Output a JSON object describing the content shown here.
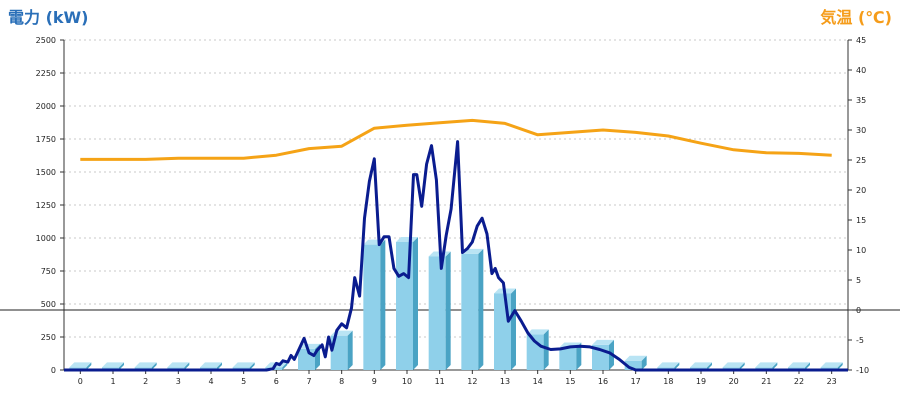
{
  "chart_data": {
    "type": "bar",
    "left_axis_title": "電力 (kW)",
    "right_axis_title": "気温 (℃)",
    "x_categories": [
      "0",
      "1",
      "2",
      "3",
      "4",
      "5",
      "6",
      "7",
      "8",
      "9",
      "10",
      "11",
      "12",
      "13",
      "14",
      "15",
      "16",
      "17",
      "18",
      "19",
      "20",
      "21",
      "22",
      "23"
    ],
    "y_left_ticks": [
      "0",
      "250",
      "500",
      "750",
      "1000",
      "1250",
      "1500",
      "1750",
      "2000",
      "2250",
      "2500"
    ],
    "y_right_ticks": [
      "-10",
      "-5",
      "0",
      "5",
      "10",
      "15",
      "20",
      "25",
      "30",
      "35",
      "40",
      "45"
    ],
    "y_left_range": [
      0,
      2500
    ],
    "y_right_range": [
      -10,
      45
    ],
    "grid": true,
    "colors": {
      "bar": "#8fd0ea",
      "bar_side": "#4aa3c4",
      "bar_top": "#b9e4f4",
      "power_line": "#0a1c8f",
      "temperature_line": "#f5a316",
      "title_left": "#2a6fb8",
      "title_right": "#f59c1a"
    },
    "series": [
      {
        "type": "bar",
        "axis": "left",
        "values": [
          20,
          20,
          20,
          20,
          20,
          20,
          20,
          160,
          260,
          950,
          970,
          860,
          880,
          580,
          270,
          170,
          190,
          70,
          20,
          20,
          20,
          20,
          20,
          20
        ]
      },
      {
        "type": "line",
        "axis": "left",
        "x": [
          5.7,
          5.9,
          6.0,
          6.1,
          6.2,
          6.35,
          6.45,
          6.55,
          6.7,
          6.85,
          7.0,
          7.15,
          7.25,
          7.4,
          7.5,
          7.6,
          7.7,
          7.85,
          8.0,
          8.15,
          8.3,
          8.4,
          8.55,
          8.7,
          8.85,
          9.0,
          9.15,
          9.3,
          9.45,
          9.6,
          9.75,
          9.9,
          10.05,
          10.2,
          10.3,
          10.45,
          10.6,
          10.75,
          10.9,
          11.05,
          11.2,
          11.35,
          11.55,
          11.7,
          11.85,
          12.0,
          12.15,
          12.3,
          12.45,
          12.6,
          12.7,
          12.8,
          12.95,
          13.1,
          13.3,
          13.5,
          13.7,
          13.9,
          14.1,
          14.4,
          14.7,
          15.0,
          15.3,
          15.6,
          15.9,
          16.2,
          16.5,
          16.8,
          17.0,
          17.2
        ],
        "y": [
          0,
          10,
          50,
          40,
          70,
          60,
          110,
          80,
          160,
          240,
          130,
          110,
          150,
          190,
          100,
          250,
          150,
          300,
          350,
          320,
          470,
          700,
          560,
          1150,
          1430,
          1600,
          950,
          1010,
          1010,
          770,
          710,
          730,
          700,
          1480,
          1480,
          1240,
          1560,
          1700,
          1440,
          770,
          1020,
          1220,
          1730,
          890,
          920,
          970,
          1090,
          1150,
          1030,
          730,
          770,
          700,
          660,
          370,
          450,
          370,
          280,
          220,
          180,
          155,
          160,
          175,
          180,
          175,
          155,
          130,
          80,
          20,
          0,
          0
        ]
      },
      {
        "type": "line",
        "axis": "right",
        "x": [
          0,
          1,
          2,
          3,
          4,
          5,
          6,
          7,
          8,
          9,
          10,
          11,
          12,
          13,
          14,
          15,
          16,
          17,
          18,
          19,
          20,
          21,
          22,
          23
        ],
        "y": [
          25.1,
          25.1,
          25.1,
          25.3,
          25.3,
          25.3,
          25.8,
          26.9,
          27.3,
          30.3,
          30.8,
          31.2,
          31.6,
          31.1,
          29.2,
          29.6,
          30.0,
          29.6,
          29.0,
          27.8,
          26.7,
          26.2,
          26.1,
          25.8
        ]
      }
    ]
  }
}
